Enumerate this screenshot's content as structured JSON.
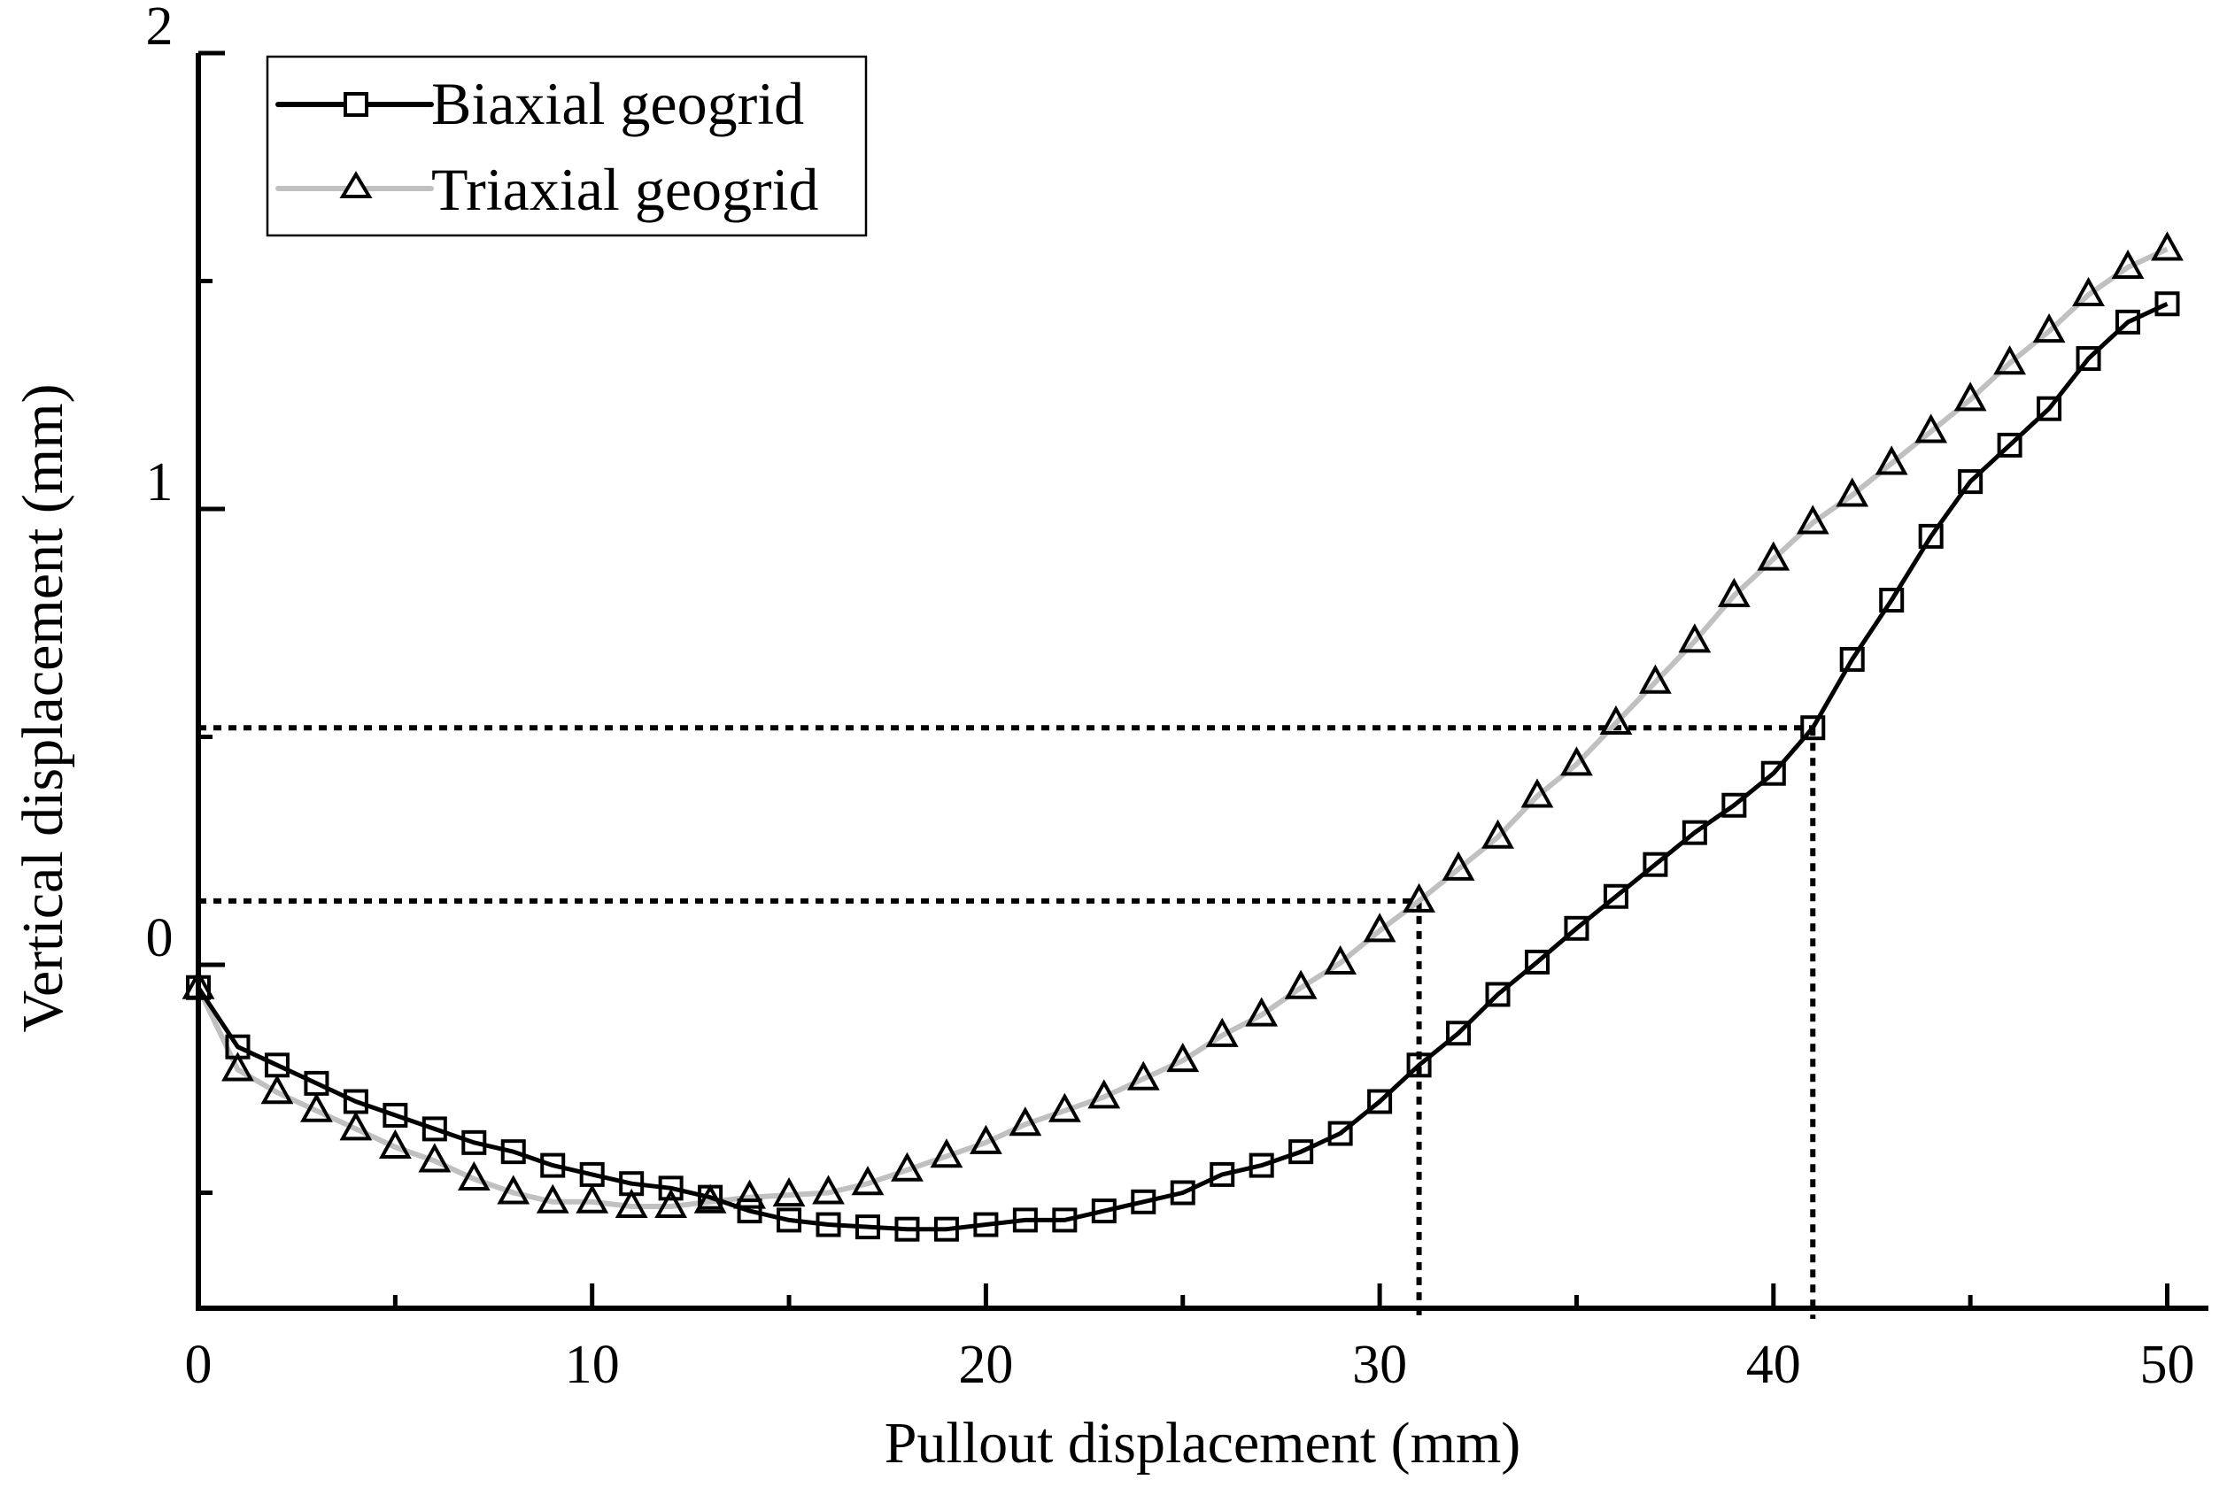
{
  "chart_data": {
    "type": "line",
    "title": "",
    "xlabel": "Pullout displacement (mm)",
    "ylabel": "Vertical displacement (mm)",
    "xlim": [
      0,
      51
    ],
    "ylim": [
      -0.75,
      2
    ],
    "x_ticks": [
      0,
      10,
      20,
      30,
      40,
      50
    ],
    "x_tick_labels": [
      "0",
      "10",
      "20",
      "30",
      "40",
      "50"
    ],
    "x_minor_ticks": [
      5,
      15,
      25,
      35,
      45
    ],
    "y_ticks": [
      0,
      1,
      2
    ],
    "y_tick_labels": [
      "0",
      "1",
      "2"
    ],
    "y_minor_ticks": [
      -0.5,
      0.5,
      1.5
    ],
    "grid": false,
    "legend_position": "upper left",
    "x": [
      0,
      1,
      2,
      3,
      4,
      5,
      6,
      7,
      8,
      9,
      10,
      11,
      12,
      13,
      14,
      15,
      16,
      17,
      18,
      19,
      20,
      21,
      22,
      23,
      24,
      25,
      26,
      27,
      28,
      29,
      30,
      31,
      32,
      33,
      34,
      35,
      36,
      37,
      38,
      39,
      40,
      41,
      42,
      43,
      44,
      45,
      46,
      47,
      48,
      49,
      50
    ],
    "series": [
      {
        "name": "Biaxial geogrid",
        "color": "#000000",
        "marker": "square",
        "values": [
          -0.05,
          -0.18,
          -0.22,
          -0.26,
          -0.3,
          -0.33,
          -0.36,
          -0.39,
          -0.41,
          -0.44,
          -0.46,
          -0.48,
          -0.49,
          -0.51,
          -0.54,
          -0.56,
          -0.57,
          -0.575,
          -0.58,
          -0.58,
          -0.57,
          -0.56,
          -0.56,
          -0.54,
          -0.52,
          -0.5,
          -0.46,
          -0.44,
          -0.41,
          -0.37,
          -0.3,
          -0.22,
          -0.15,
          -0.065,
          0.006,
          0.08,
          0.15,
          0.22,
          0.29,
          0.35,
          0.42,
          0.52,
          0.67,
          0.8,
          0.94,
          1.06,
          1.14,
          1.22,
          1.33,
          1.41,
          1.45
        ]
      },
      {
        "name": "Triaxial geogrid",
        "color": "#c0c0c0",
        "marker": "triangle",
        "values": [
          -0.05,
          -0.23,
          -0.28,
          -0.32,
          -0.36,
          -0.4,
          -0.43,
          -0.47,
          -0.5,
          -0.52,
          -0.52,
          -0.53,
          -0.53,
          -0.52,
          -0.51,
          -0.505,
          -0.5,
          -0.48,
          -0.45,
          -0.42,
          -0.39,
          -0.35,
          -0.32,
          -0.29,
          -0.25,
          -0.21,
          -0.155,
          -0.11,
          -0.05,
          0.004,
          0.075,
          0.14,
          0.21,
          0.28,
          0.37,
          0.44,
          0.53,
          0.62,
          0.71,
          0.81,
          0.89,
          0.97,
          1.03,
          1.1,
          1.17,
          1.24,
          1.32,
          1.39,
          1.47,
          1.53,
          1.57
        ]
      }
    ],
    "annotations": [
      {
        "type": "dotted-guide",
        "x": 31,
        "y": 0.14,
        "description": "Triaxial at 31 mm"
      },
      {
        "type": "dotted-guide",
        "x": 41,
        "y": 0.52,
        "description": "Biaxial at 41 mm"
      }
    ]
  },
  "legend": {
    "items": [
      {
        "label": "Biaxial geogrid"
      },
      {
        "label": "Triaxial geogrid"
      }
    ]
  },
  "axes": {
    "x_title": "Pullout displacement (mm)",
    "y_title": "Vertical displacement (mm)"
  }
}
